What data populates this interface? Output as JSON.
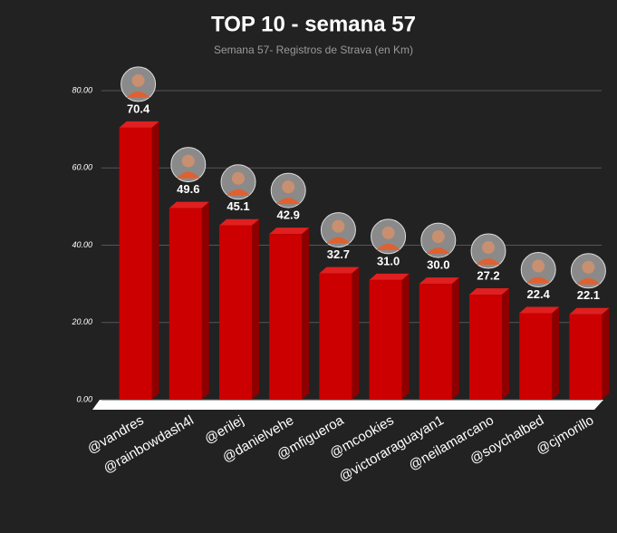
{
  "chart_data": {
    "type": "bar3d",
    "title": "TOP 10 - semana 57",
    "subtitle": "Semana 57- Registros de Strava (en Km)",
    "categories": [
      "@vandres",
      "@rainbowdash4l",
      "@erilej",
      "@danielvehe",
      "@mfigueroa",
      "@mcookies",
      "@victoraraguayan1",
      "@neilamarcano",
      "@soychalbed",
      "@cjmorillo"
    ],
    "values": [
      70.4,
      49.6,
      45.1,
      42.9,
      32.7,
      31.0,
      30.0,
      27.2,
      22.4,
      22.1
    ],
    "value_labels": [
      "70.4",
      "49.6",
      "45.1",
      "42.9",
      "32.7",
      "31.0",
      "30.0",
      "27.2",
      "22.4",
      "22.1"
    ],
    "color": "#cc0000",
    "ylim": [
      0,
      80
    ],
    "yticks": [
      {
        "value": 0,
        "label": "0.00"
      },
      {
        "value": 20,
        "label": "20.00"
      },
      {
        "value": 40,
        "label": "40.00"
      },
      {
        "value": 60,
        "label": "60.00"
      },
      {
        "value": 80,
        "label": "80.00"
      }
    ],
    "grid": true
  }
}
